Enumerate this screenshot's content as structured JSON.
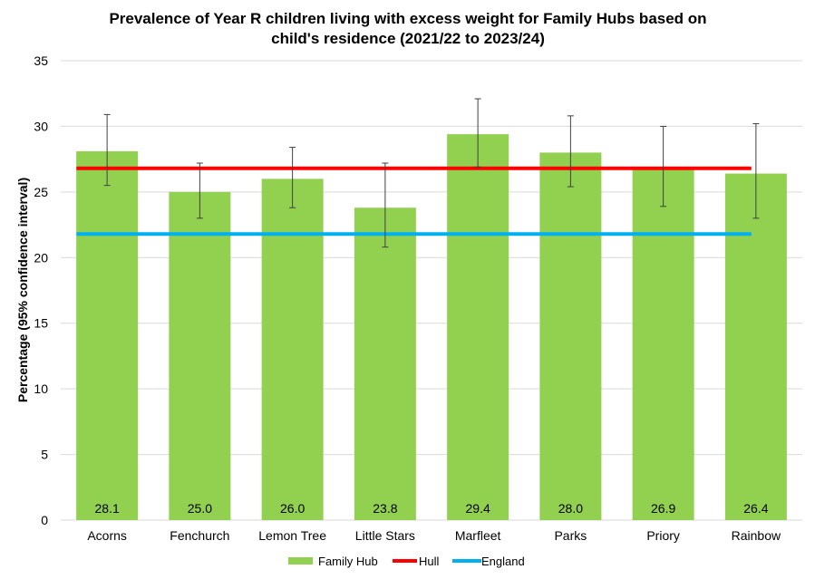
{
  "chart_data": {
    "type": "bar",
    "title_lines": [
      "Prevalence of Year R children living with excess weight for Family Hubs based on",
      "child's residence (2021/22 to 2023/24)"
    ],
    "xlabel": "",
    "ylabel": "Percentage (95% confidence interval)",
    "ylim": [
      0,
      35
    ],
    "yticks": [
      0,
      5,
      10,
      15,
      20,
      25,
      30,
      35
    ],
    "ytick_labels": [
      "0",
      "5",
      "10",
      "15",
      "20",
      "25",
      "30",
      "35"
    ],
    "grid": true,
    "categories": [
      "Acorns",
      "Fenchurch",
      "Lemon Tree",
      "Little Stars",
      "Marfleet",
      "Parks",
      "Priory",
      "Rainbow"
    ],
    "series": [
      {
        "name": "Family Hub",
        "kind": "bar",
        "color": "#92d050",
        "values": [
          28.1,
          25.0,
          26.0,
          23.8,
          29.4,
          28.0,
          26.9,
          26.4
        ],
        "value_labels": [
          "28.1",
          "25.0",
          "26.0",
          "23.8",
          "29.4",
          "28.0",
          "26.9",
          "26.4"
        ],
        "ci_lower": [
          25.5,
          23.0,
          23.8,
          20.8,
          26.9,
          25.4,
          23.9,
          23.0
        ],
        "ci_upper": [
          30.9,
          27.2,
          28.4,
          27.2,
          32.1,
          30.8,
          30.0,
          30.2
        ]
      },
      {
        "name": "Hull",
        "kind": "line",
        "color": "#ff0000",
        "value": 26.8
      },
      {
        "name": "England",
        "kind": "line",
        "color": "#00b0f0",
        "value": 21.8
      }
    ],
    "legend_position": "bottom"
  }
}
